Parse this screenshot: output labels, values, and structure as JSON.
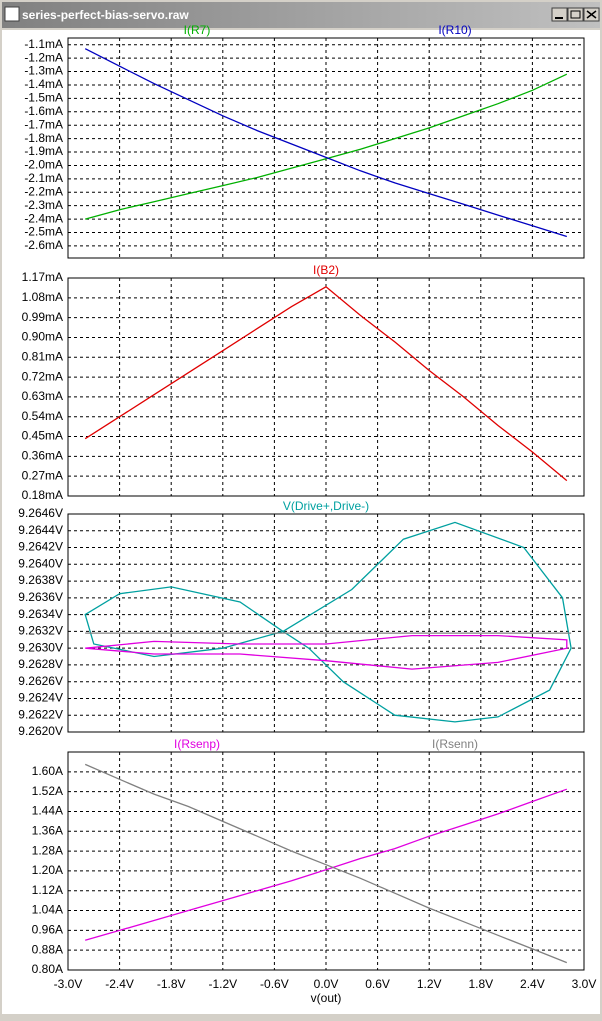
{
  "window_title": "series-perfect-bias-servo.raw",
  "chart_data": [
    {
      "type": "line",
      "x": [
        -2.8,
        -2.4,
        -2.0,
        -1.6,
        -1.2,
        -0.8,
        -0.4,
        0.0,
        0.4,
        0.8,
        1.2,
        1.6,
        2.0,
        2.4,
        2.8
      ],
      "series": [
        {
          "name": "I(R7)",
          "color": "#00b000",
          "values": [
            -2.4,
            -2.33,
            -2.27,
            -2.21,
            -2.15,
            -2.09,
            -2.02,
            -1.95,
            -1.88,
            -1.8,
            -1.72,
            -1.63,
            -1.54,
            -1.44,
            -1.32
          ]
        },
        {
          "name": "I(R10)",
          "color": "#0000c0",
          "values": [
            -1.13,
            -1.26,
            -1.39,
            -1.51,
            -1.63,
            -1.74,
            -1.84,
            -1.94,
            -2.04,
            -2.13,
            -2.21,
            -2.29,
            -2.37,
            -2.45,
            -2.53
          ]
        }
      ],
      "ylim": [
        -2.69,
        -1.05
      ],
      "yticks": [
        {
          "value": -1.1,
          "label": "-1.1mA"
        },
        {
          "value": -1.2,
          "label": "-1.2mA"
        },
        {
          "value": -1.3,
          "label": "-1.3mA"
        },
        {
          "value": -1.4,
          "label": "-1.4mA"
        },
        {
          "value": -1.5,
          "label": "-1.5mA"
        },
        {
          "value": -1.6,
          "label": "-1.6mA"
        },
        {
          "value": -1.7,
          "label": "-1.7mA"
        },
        {
          "value": -1.8,
          "label": "-1.8mA"
        },
        {
          "value": -1.9,
          "label": "-1.9mA"
        },
        {
          "value": -2.0,
          "label": "-2.0mA"
        },
        {
          "value": -2.1,
          "label": "-2.1mA"
        },
        {
          "value": -2.2,
          "label": "-2.2mA"
        },
        {
          "value": -2.3,
          "label": "-2.3mA"
        },
        {
          "value": -2.4,
          "label": "-2.4mA"
        },
        {
          "value": -2.5,
          "label": "-2.5mA"
        },
        {
          "value": -2.6,
          "label": "-2.6mA"
        }
      ],
      "grid": true
    },
    {
      "type": "line",
      "x": [
        -2.8,
        -2.4,
        -2.0,
        -1.6,
        -1.2,
        -0.8,
        -0.4,
        0.0,
        0.4,
        0.8,
        1.2,
        1.6,
        2.0,
        2.4,
        2.8
      ],
      "series": [
        {
          "name": "I(B2)",
          "color": "#e00000",
          "values": [
            0.44,
            0.54,
            0.64,
            0.74,
            0.84,
            0.94,
            1.04,
            1.13,
            1.0,
            0.88,
            0.75,
            0.63,
            0.5,
            0.38,
            0.25
          ]
        }
      ],
      "ylim": [
        0.18,
        1.17
      ],
      "yticks": [
        {
          "value": 1.17,
          "label": "1.17mA"
        },
        {
          "value": 1.08,
          "label": "1.08mA"
        },
        {
          "value": 0.99,
          "label": "0.99mA"
        },
        {
          "value": 0.9,
          "label": "0.90mA"
        },
        {
          "value": 0.81,
          "label": "0.81mA"
        },
        {
          "value": 0.72,
          "label": "0.72mA"
        },
        {
          "value": 0.63,
          "label": "0.63mA"
        },
        {
          "value": 0.54,
          "label": "0.54mA"
        },
        {
          "value": 0.45,
          "label": "0.45mA"
        },
        {
          "value": 0.36,
          "label": "0.36mA"
        },
        {
          "value": 0.27,
          "label": "0.27mA"
        },
        {
          "value": 0.18,
          "label": "0.18mA"
        }
      ],
      "grid": true
    },
    {
      "type": "line",
      "series": [
        {
          "name": "V(Drive+,Drive-)",
          "color": "#00a0a0",
          "x": [
            -0.5,
            0.3,
            0.9,
            1.5,
            2.3,
            2.75,
            2.85,
            2.6,
            2.0,
            1.5,
            0.8,
            0.2,
            -0.2,
            -0.5,
            -1.0,
            -1.8,
            -2.4,
            -2.8,
            -2.7,
            -2.0,
            -1.2,
            -0.5
          ],
          "values": [
            9.2632,
            9.2637,
            9.2643,
            9.2645,
            9.2642,
            9.2636,
            9.263,
            9.2625,
            9.26218,
            9.26212,
            9.2622,
            9.2626,
            9.263,
            9.2632,
            9.26355,
            9.26373,
            9.26365,
            9.2634,
            9.26305,
            9.2629,
            9.263,
            9.2632
          ]
        },
        {
          "color": "#e000e0",
          "x": [
            -2.8,
            -2.0,
            -1.0,
            0.0,
            1.0,
            2.0,
            2.8,
            2.8,
            2.0,
            1.0,
            0.0,
            -1.0,
            -2.0,
            -2.8
          ],
          "values": [
            9.263,
            9.26308,
            9.26305,
            9.26305,
            9.26315,
            9.26315,
            9.2631,
            9.263,
            9.26283,
            9.26275,
            9.26285,
            9.26293,
            9.26293,
            9.263
          ]
        },
        {
          "color": "#808080",
          "x": [
            -2.8,
            2.85
          ],
          "values": [
            9.26318,
            9.26318
          ]
        }
      ],
      "ylim": [
        9.262,
        9.2646
      ],
      "yticks": [
        {
          "value": 9.2646,
          "label": "9.2646V"
        },
        {
          "value": 9.2644,
          "label": "9.2644V"
        },
        {
          "value": 9.2642,
          "label": "9.2642V"
        },
        {
          "value": 9.264,
          "label": "9.2640V"
        },
        {
          "value": 9.2638,
          "label": "9.2638V"
        },
        {
          "value": 9.2636,
          "label": "9.2636V"
        },
        {
          "value": 9.2634,
          "label": "9.2634V"
        },
        {
          "value": 9.2632,
          "label": "9.2632V"
        },
        {
          "value": 9.263,
          "label": "9.2630V"
        },
        {
          "value": 9.2628,
          "label": "9.2628V"
        },
        {
          "value": 9.2626,
          "label": "9.2626V"
        },
        {
          "value": 9.2624,
          "label": "9.2624V"
        },
        {
          "value": 9.2622,
          "label": "9.2622V"
        },
        {
          "value": 9.262,
          "label": "9.2620V"
        }
      ],
      "grid": true
    },
    {
      "type": "line",
      "x": [
        -2.8,
        -2.4,
        -2.0,
        -1.6,
        -1.2,
        -0.8,
        -0.4,
        0.0,
        0.4,
        0.8,
        1.2,
        1.6,
        2.0,
        2.4,
        2.8
      ],
      "series": [
        {
          "name": "I(Rsenp)",
          "color": "#e000e0",
          "values": [
            0.92,
            0.96,
            1.0,
            1.04,
            1.08,
            1.12,
            1.16,
            1.205,
            1.25,
            1.29,
            1.34,
            1.385,
            1.43,
            1.48,
            1.53
          ]
        },
        {
          "name": "I(Rsenn)",
          "color": "#808080",
          "values": [
            1.63,
            1.57,
            1.51,
            1.46,
            1.4,
            1.34,
            1.28,
            1.225,
            1.17,
            1.11,
            1.05,
            0.995,
            0.94,
            0.885,
            0.83
          ]
        }
      ],
      "ylim": [
        0.8,
        1.68
      ],
      "yticks": [
        {
          "value": 1.6,
          "label": "1.60A"
        },
        {
          "value": 1.52,
          "label": "1.52A"
        },
        {
          "value": 1.44,
          "label": "1.44A"
        },
        {
          "value": 1.36,
          "label": "1.36A"
        },
        {
          "value": 1.28,
          "label": "1.28A"
        },
        {
          "value": 1.2,
          "label": "1.20A"
        },
        {
          "value": 1.12,
          "label": "1.12A"
        },
        {
          "value": 1.04,
          "label": "1.04A"
        },
        {
          "value": 0.96,
          "label": "0.96A"
        },
        {
          "value": 0.88,
          "label": "0.88A"
        },
        {
          "value": 0.8,
          "label": "0.80A"
        }
      ],
      "xlabel": "v(out)",
      "xlim": [
        -3.0,
        3.0
      ],
      "xticks": [
        {
          "value": -3.0,
          "label": "-3.0V"
        },
        {
          "value": -2.4,
          "label": "-2.4V"
        },
        {
          "value": -1.8,
          "label": "-1.8V"
        },
        {
          "value": -1.2,
          "label": "-1.2V"
        },
        {
          "value": -0.6,
          "label": "-0.6V"
        },
        {
          "value": 0.0,
          "label": "0.0V"
        },
        {
          "value": 0.6,
          "label": "0.6V"
        },
        {
          "value": 1.2,
          "label": "1.2V"
        },
        {
          "value": 1.8,
          "label": "1.8V"
        },
        {
          "value": 2.4,
          "label": "2.4V"
        },
        {
          "value": 3.0,
          "label": "3.0V"
        }
      ],
      "grid": true
    }
  ]
}
